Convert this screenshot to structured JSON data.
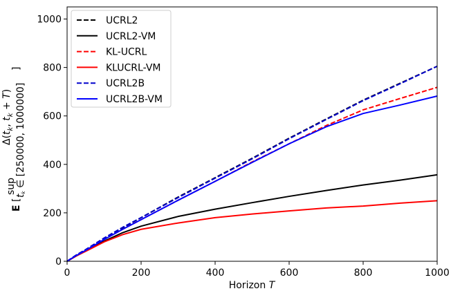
{
  "chart_data": {
    "type": "line",
    "title": "",
    "xlabel": "Horizon T",
    "xlabel_text": "Horizon ",
    "xlabel_var": "T",
    "ylabel": "E[ sup_{t_k ∈ [250000, 1000000]} Δ(t_k, t_k + T) ]",
    "ylabel_parts": {
      "bold": "E",
      "open": "[",
      "sup": "sup",
      "subscript": "t",
      "subscript_k": "k",
      "subscript_rest": " ∈ [250000, 1000000]",
      "delta": "Δ(",
      "arg1": "t",
      "arg1_k": "k",
      "arg_sep": ", ",
      "arg2": "t",
      "arg2_k": "k",
      "arg_plus": " + ",
      "arg_T": "T",
      "close_paren": ")",
      "close": "]"
    },
    "xlim": [
      0,
      1000
    ],
    "ylim": [
      0,
      1050
    ],
    "xticks": [
      0,
      200,
      400,
      600,
      800,
      1000
    ],
    "yticks": [
      0,
      200,
      400,
      600,
      800,
      1000
    ],
    "xtick_labels": [
      "0",
      "200",
      "400",
      "600",
      "800",
      "1000"
    ],
    "ytick_labels": [
      "0",
      "200",
      "400",
      "600",
      "800",
      "1000"
    ],
    "grid": false,
    "legend_position": "top-left",
    "x": [
      0,
      25,
      50,
      100,
      150,
      200,
      300,
      400,
      500,
      600,
      700,
      800,
      900,
      1000
    ],
    "series": [
      {
        "name": "UCRL2",
        "color": "#000000",
        "dash": "dashed",
        "values": [
          0,
          26,
          48,
          95,
          138,
          180,
          265,
          345,
          425,
          508,
          587,
          665,
          735,
          805
        ]
      },
      {
        "name": "UCRL2-VM",
        "color": "#000000",
        "dash": "solid",
        "values": [
          0,
          22,
          42,
          83,
          118,
          145,
          185,
          215,
          242,
          268,
          292,
          315,
          335,
          357
        ]
      },
      {
        "name": "KL-UCRL",
        "color": "#ff0000",
        "dash": "dashed",
        "values": [
          0,
          24,
          46,
          90,
          132,
          172,
          252,
          330,
          410,
          485,
          560,
          625,
          672,
          718
        ]
      },
      {
        "name": "KLUCRL-VM",
        "color": "#ff0000",
        "dash": "solid",
        "values": [
          0,
          22,
          41,
          80,
          110,
          132,
          158,
          180,
          195,
          208,
          220,
          228,
          240,
          250
        ]
      },
      {
        "name": "UCRL2B",
        "color": "#0000cc",
        "dash": "dashed",
        "values": [
          0,
          26,
          48,
          96,
          140,
          180,
          263,
          343,
          423,
          506,
          585,
          663,
          733,
          805
        ]
      },
      {
        "name": "UCRL2B-VM",
        "color": "#0000ff",
        "dash": "solid",
        "values": [
          0,
          24,
          45,
          90,
          132,
          172,
          252,
          330,
          408,
          485,
          555,
          610,
          645,
          682
        ]
      }
    ]
  }
}
